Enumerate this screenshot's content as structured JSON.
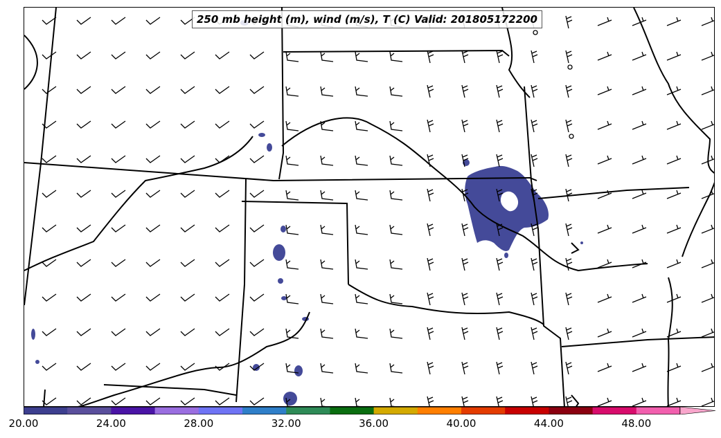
{
  "title": "250 mb height (m), wind (m/s), T (C) Valid: 201805172200",
  "colorbar": {
    "colors": [
      "#3d3f8f",
      "#5a4f9c",
      "#4a14a6",
      "#9a6ee0",
      "#6f74f5",
      "#2f7fc9",
      "#2e8b57",
      "#0a6e10",
      "#d4aa00",
      "#ff7f00",
      "#e43c00",
      "#c80000",
      "#8b0010",
      "#d80c6c",
      "#f25fae"
    ],
    "extend_color": "#f9a6cc",
    "ticks": [
      "20.00",
      "24.00",
      "28.00",
      "32.00",
      "36.00",
      "40.00",
      "44.00",
      "48.00"
    ]
  },
  "contour_fill_color": "#444a99",
  "map": {
    "boundary_color": "#000000",
    "barb_color": "#000000"
  }
}
